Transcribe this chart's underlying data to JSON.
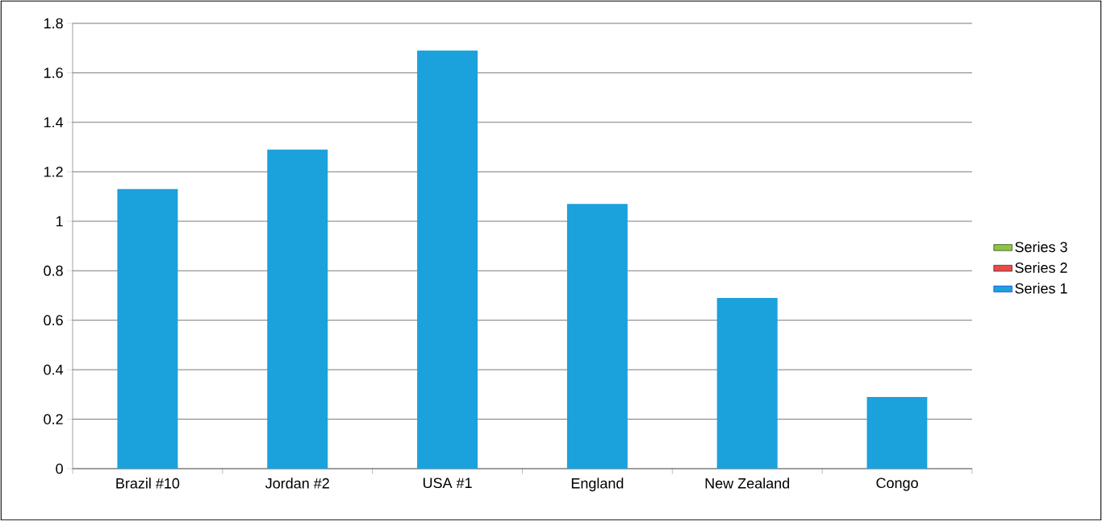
{
  "chart_data": {
    "type": "bar",
    "categories": [
      "Brazil #10",
      "Jordan #2",
      "USA #1",
      "England",
      "New Zealand",
      "Congo"
    ],
    "series": [
      {
        "name": "Series 1",
        "color": "#1ba1db",
        "values": [
          1.13,
          1.29,
          1.69,
          1.07,
          0.69,
          0.29
        ]
      },
      {
        "name": "Series 2",
        "color": "#e84a4a",
        "values": [
          null,
          null,
          null,
          null,
          null,
          null
        ]
      },
      {
        "name": "Series 3",
        "color": "#8cc63f",
        "values": [
          null,
          null,
          null,
          null,
          null,
          null
        ]
      }
    ],
    "ylim": [
      0,
      1.8
    ],
    "yticks": [
      0,
      0.2,
      0.4,
      0.6,
      0.8,
      1,
      1.2,
      1.4,
      1.6,
      1.8
    ],
    "grid": "y",
    "legend": "right"
  }
}
